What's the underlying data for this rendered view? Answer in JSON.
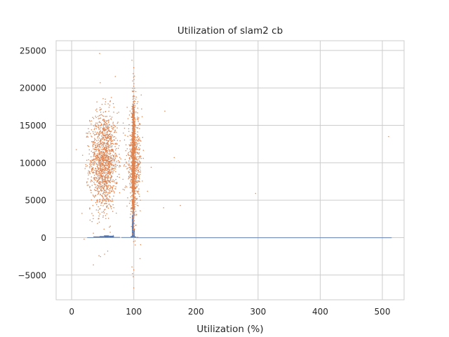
{
  "chart_data": {
    "type": "scatter",
    "title": "Utilization of slam2 cb",
    "xlabel": "Utilization (%)",
    "ylabel": "",
    "xlim": [
      -25,
      535
    ],
    "ylim": [
      -8300,
      26300
    ],
    "xticks": [
      0,
      100,
      200,
      300,
      400,
      500
    ],
    "xtick_labels": [
      "0",
      "100",
      "200",
      "300",
      "400",
      "500"
    ],
    "yticks": [
      -5000,
      0,
      5000,
      10000,
      15000,
      20000,
      25000
    ],
    "ytick_labels": [
      "−5000",
      "0",
      "5000",
      "10000",
      "15000",
      "20000",
      "25000"
    ],
    "grid": true,
    "legend": "none",
    "series": [
      {
        "kind": "histogram",
        "color": "#4c72b0",
        "bins": [
          {
            "x0": 25,
            "x1": 35,
            "value": 40
          },
          {
            "x0": 35,
            "x1": 45,
            "value": 150
          },
          {
            "x0": 45,
            "x1": 52,
            "value": 200
          },
          {
            "x0": 52,
            "x1": 60,
            "value": 300
          },
          {
            "x0": 60,
            "x1": 68,
            "value": 250
          },
          {
            "x0": 68,
            "x1": 78,
            "value": 80
          },
          {
            "x0": 80,
            "x1": 95,
            "value": 60
          },
          {
            "x0": 95,
            "x1": 97,
            "value": 200
          },
          {
            "x0": 97,
            "x1": 98.5,
            "value": 3000
          },
          {
            "x0": 98.5,
            "x1": 100,
            "value": 17800
          },
          {
            "x0": 100,
            "x1": 101.5,
            "value": 1200
          },
          {
            "x0": 101.5,
            "x1": 104,
            "value": 150
          },
          {
            "x0": 104,
            "x1": 515,
            "value": 15
          }
        ]
      },
      {
        "kind": "scatter",
        "color": "#dd8452",
        "clusters": [
          {
            "cx": 52,
            "sx": 11,
            "cy": 10200,
            "sy": 3300,
            "n": 1400
          },
          {
            "cx": 99.5,
            "sx": 1.2,
            "cy": 10500,
            "sy": 3800,
            "n": 1300
          },
          {
            "cx": 101,
            "sx": 6,
            "cy": 10000,
            "sy": 3200,
            "n": 500
          }
        ],
        "points": [
          [
            45,
            24600
          ],
          [
            97,
            23700
          ],
          [
            100,
            22700
          ],
          [
            99,
            21900
          ],
          [
            46,
            20700
          ],
          [
            100,
            -6700
          ],
          [
            99,
            -5200
          ],
          [
            98,
            -4800
          ],
          [
            100,
            -4300
          ],
          [
            97,
            -3900
          ],
          [
            53,
            -2200
          ],
          [
            44,
            -2400
          ],
          [
            58,
            -1800
          ],
          [
            20,
            -200
          ],
          [
            35,
            600
          ],
          [
            150,
            16900
          ],
          [
            165,
            10700
          ],
          [
            128,
            9400
          ],
          [
            122,
            6200
          ],
          [
            148,
            4000
          ],
          [
            175,
            4300
          ],
          [
            296,
            5900
          ],
          [
            510,
            13500
          ],
          [
            110,
            -2800
          ],
          [
            108,
            16000
          ]
        ]
      }
    ]
  }
}
